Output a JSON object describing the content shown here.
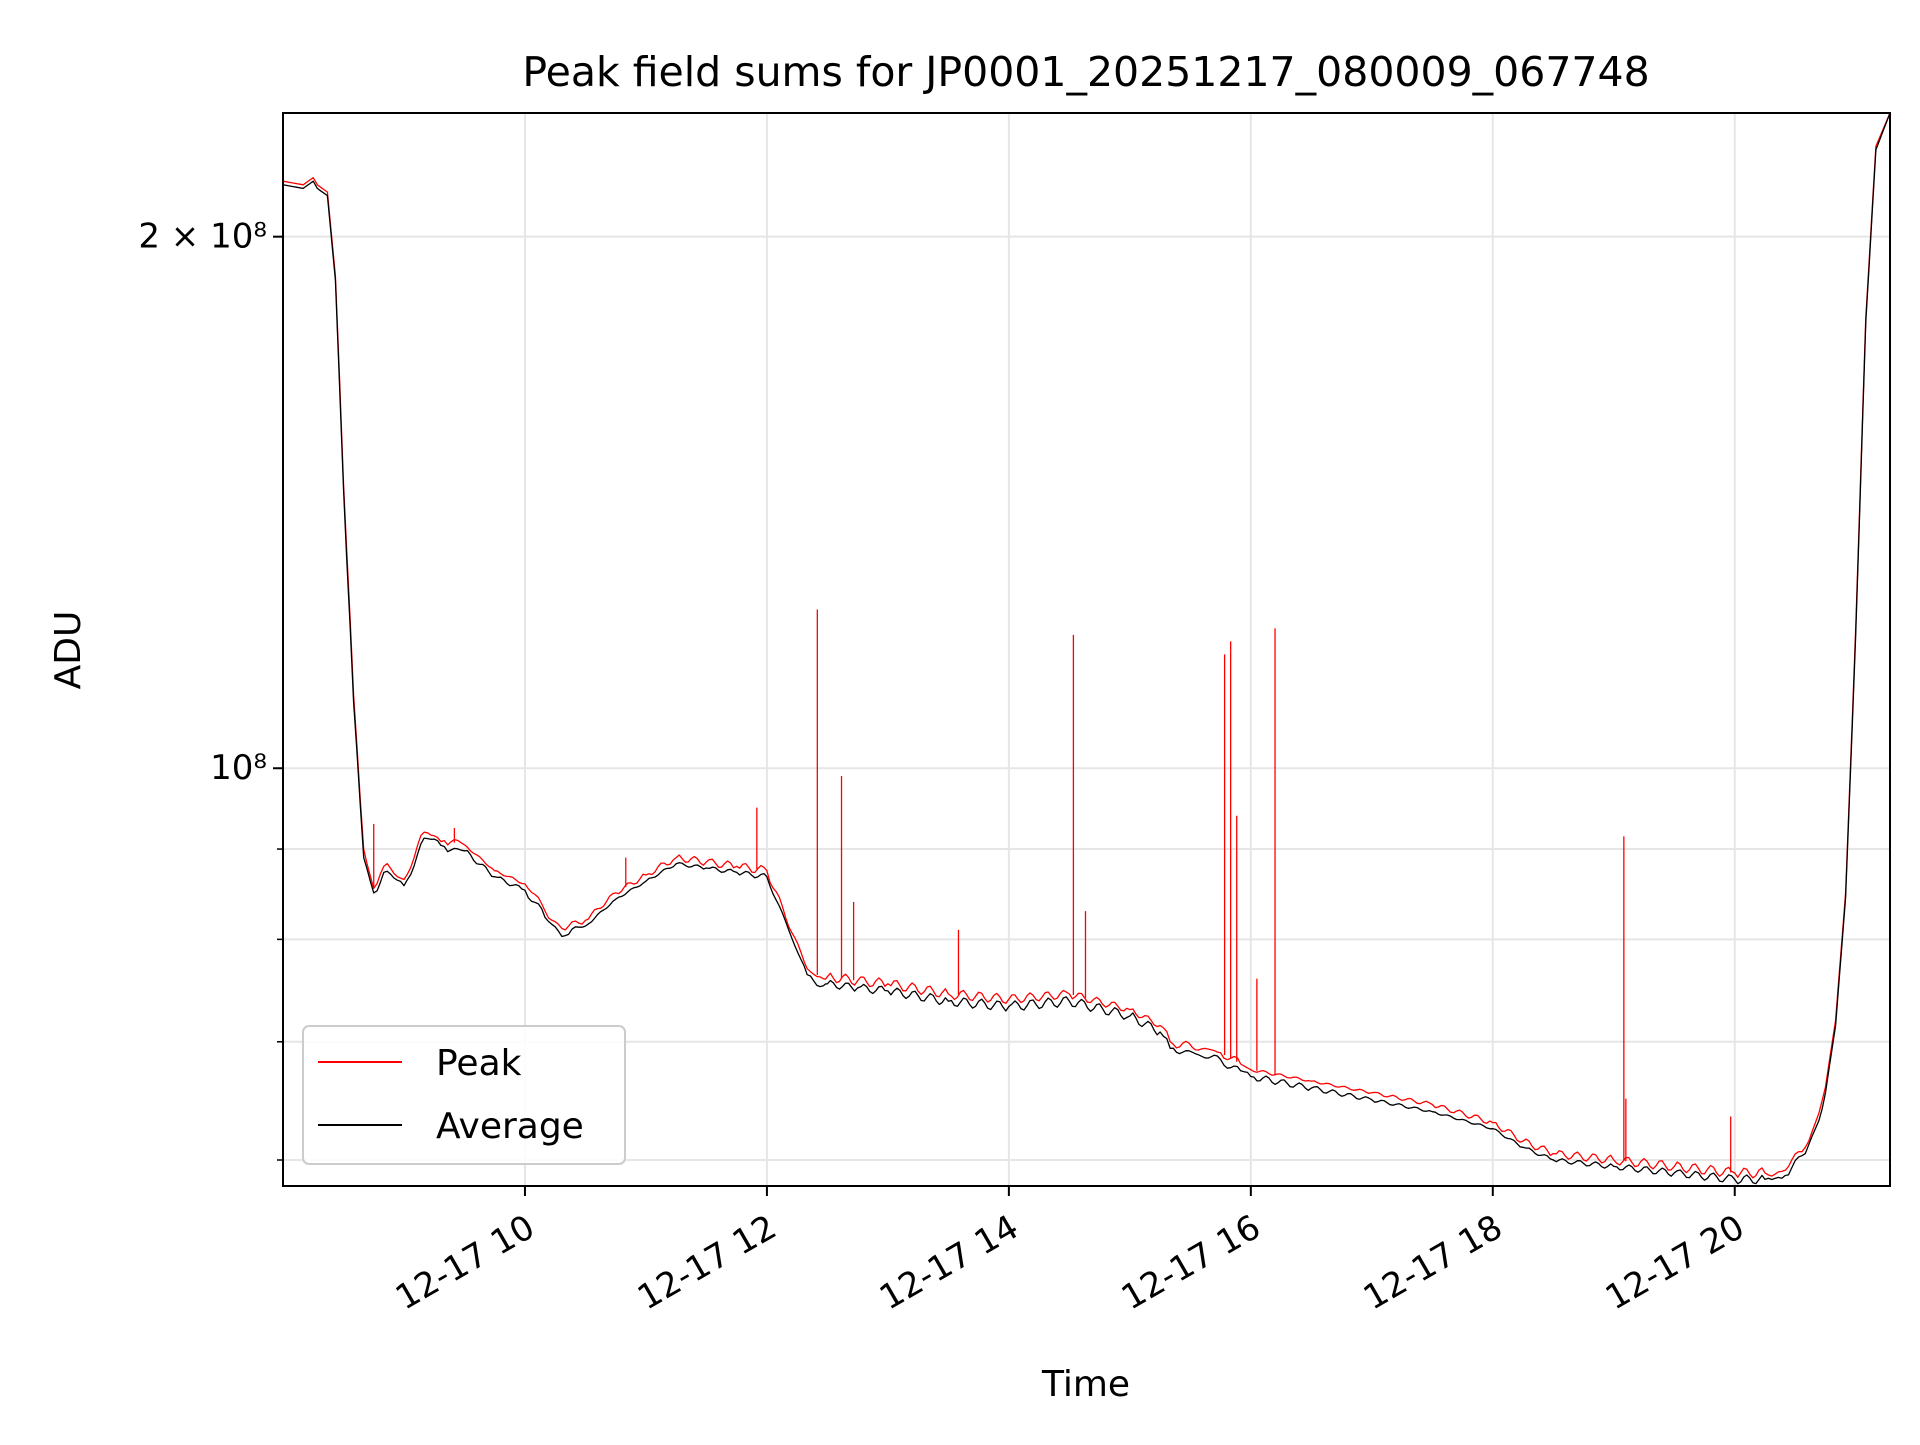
{
  "chart_data": {
    "type": "line",
    "title": "Peak field sums for JP0001_20251217_080009_067748",
    "xlabel": "Time",
    "ylabel": "ADU",
    "y_scale": "log",
    "grid": true,
    "legend": "lower-left",
    "x_range": [
      "2025-12-17 08:00",
      "2025-12-17 21:17"
    ],
    "ylim": [
      58000000,
      235000000
    ],
    "x_ticks": [
      {
        "x": "2025-12-17 10:00",
        "label": "12-17 10"
      },
      {
        "x": "2025-12-17 12:00",
        "label": "12-17 12"
      },
      {
        "x": "2025-12-17 14:00",
        "label": "12-17 14"
      },
      {
        "x": "2025-12-17 16:00",
        "label": "12-17 16"
      },
      {
        "x": "2025-12-17 18:00",
        "label": "12-17 18"
      },
      {
        "x": "2025-12-17 20:00",
        "label": "12-17 20"
      }
    ],
    "y_major_ticks": [
      {
        "value": 200000000,
        "label": "2 × 10⁸"
      },
      {
        "value": 100000000,
        "label": "10⁸"
      }
    ],
    "y_minor_ticks": [
      60000000,
      70000000,
      80000000,
      90000000
    ],
    "series": [
      {
        "name": "Peak",
        "color": "#ff0000",
        "x": [
          "2025-12-17 08:00",
          "2025-12-17 08:10",
          "2025-12-17 08:15",
          "2025-12-17 08:17",
          "2025-12-17 08:22",
          "2025-12-17 08:26",
          "2025-12-17 08:30",
          "2025-12-17 08:35",
          "2025-12-17 08:40",
          "2025-12-17 08:45",
          "2025-12-17 08:50",
          "2025-12-17 09:00",
          "2025-12-17 09:10",
          "2025-12-17 09:20",
          "2025-12-17 09:30",
          "2025-12-17 09:45",
          "2025-12-17 10:00",
          "2025-12-17 10:10",
          "2025-12-17 10:20",
          "2025-12-17 10:30",
          "2025-12-17 10:45",
          "2025-12-17 11:00",
          "2025-12-17 11:15",
          "2025-12-17 11:30",
          "2025-12-17 11:45",
          "2025-12-17 12:00",
          "2025-12-17 12:20",
          "2025-12-17 12:28",
          "2025-12-17 12:30",
          "2025-12-17 12:45",
          "2025-12-17 13:00",
          "2025-12-17 13:30",
          "2025-12-17 14:00",
          "2025-12-17 14:30",
          "2025-12-17 15:00",
          "2025-12-17 15:15",
          "2025-12-17 15:20",
          "2025-12-17 15:45",
          "2025-12-17 15:55",
          "2025-12-17 16:00",
          "2025-12-17 16:30",
          "2025-12-17 17:00",
          "2025-12-17 17:30",
          "2025-12-17 18:00",
          "2025-12-17 18:15",
          "2025-12-17 18:30",
          "2025-12-17 19:00",
          "2025-12-17 19:30",
          "2025-12-17 20:00",
          "2025-12-17 20:15",
          "2025-12-17 20:25",
          "2025-12-17 20:35",
          "2025-12-17 20:40",
          "2025-12-17 20:45",
          "2025-12-17 20:50",
          "2025-12-17 20:55",
          "2025-12-17 21:00",
          "2025-12-17 21:05",
          "2025-12-17 21:10",
          "2025-12-17 21:17"
        ],
        "y": [
          215000000,
          214000000,
          216000000,
          214000000,
          212000000,
          190000000,
          145000000,
          110000000,
          90000000,
          85500000,
          88000000,
          86500000,
          92000000,
          91000000,
          90500000,
          87500000,
          86000000,
          83000000,
          81000000,
          82000000,
          85000000,
          87000000,
          89000000,
          88500000,
          88000000,
          87500000,
          77000000,
          76000000,
          76200000,
          75800000,
          75500000,
          74500000,
          74000000,
          74500000,
          73000000,
          71500000,
          70000000,
          69000000,
          68000000,
          67500000,
          66500000,
          65500000,
          64500000,
          63000000,
          61500000,
          60500000,
          60000000,
          59500000,
          59000000,
          59000000,
          59200000,
          61000000,
          63000000,
          66000000,
          72000000,
          85000000,
          120000000,
          180000000,
          225000000,
          235000000
        ]
      },
      {
        "name": "Average",
        "color": "#000000",
        "x": [
          "2025-12-17 08:00",
          "2025-12-17 08:10",
          "2025-12-17 08:15",
          "2025-12-17 08:17",
          "2025-12-17 08:22",
          "2025-12-17 08:26",
          "2025-12-17 08:30",
          "2025-12-17 08:35",
          "2025-12-17 08:40",
          "2025-12-17 08:45",
          "2025-12-17 08:50",
          "2025-12-17 09:00",
          "2025-12-17 09:10",
          "2025-12-17 09:20",
          "2025-12-17 09:30",
          "2025-12-17 09:45",
          "2025-12-17 10:00",
          "2025-12-17 10:10",
          "2025-12-17 10:20",
          "2025-12-17 10:30",
          "2025-12-17 10:45",
          "2025-12-17 11:00",
          "2025-12-17 11:15",
          "2025-12-17 11:30",
          "2025-12-17 11:45",
          "2025-12-17 12:00",
          "2025-12-17 12:20",
          "2025-12-17 12:28",
          "2025-12-17 12:30",
          "2025-12-17 12:45",
          "2025-12-17 13:00",
          "2025-12-17 13:30",
          "2025-12-17 14:00",
          "2025-12-17 14:30",
          "2025-12-17 15:00",
          "2025-12-17 15:15",
          "2025-12-17 15:20",
          "2025-12-17 15:45",
          "2025-12-17 15:55",
          "2025-12-17 16:00",
          "2025-12-17 16:30",
          "2025-12-17 17:00",
          "2025-12-17 17:30",
          "2025-12-17 18:00",
          "2025-12-17 18:15",
          "2025-12-17 18:30",
          "2025-12-17 19:00",
          "2025-12-17 19:30",
          "2025-12-17 20:00",
          "2025-12-17 20:15",
          "2025-12-17 20:25",
          "2025-12-17 20:35",
          "2025-12-17 20:40",
          "2025-12-17 20:45",
          "2025-12-17 20:50",
          "2025-12-17 20:55",
          "2025-12-17 21:00",
          "2025-12-17 21:05",
          "2025-12-17 21:10",
          "2025-12-17 21:17"
        ],
        "y": [
          214000000,
          213000000,
          215000000,
          213000000,
          211000000,
          189000000,
          144000000,
          109000000,
          89000000,
          85000000,
          87300000,
          85800000,
          91300000,
          90300000,
          89800000,
          86800000,
          85300000,
          82300000,
          80400000,
          81400000,
          84300000,
          86300000,
          88300000,
          87800000,
          87300000,
          86800000,
          76400000,
          75300000,
          75500000,
          75100000,
          74800000,
          73800000,
          73300000,
          73800000,
          72400000,
          70900000,
          69400000,
          68400000,
          67400000,
          66900000,
          65900000,
          64900000,
          63900000,
          62500000,
          61000000,
          60000000,
          59500000,
          59000000,
          58500000,
          58500000,
          58800000,
          60500000,
          62500000,
          65500000,
          71500000,
          84500000,
          119000000,
          179000000,
          224000000,
          235000000
        ]
      }
    ],
    "spikes": [
      {
        "x": "2025-12-17 08:45",
        "y": 93000000
      },
      {
        "x": "2025-12-17 09:25",
        "y": 92500000
      },
      {
        "x": "2025-12-17 10:50",
        "y": 89000000
      },
      {
        "x": "2025-12-17 11:55",
        "y": 95000000
      },
      {
        "x": "2025-12-17 12:25",
        "y": 123000000
      },
      {
        "x": "2025-12-17 12:37",
        "y": 99000000
      },
      {
        "x": "2025-12-17 12:43",
        "y": 84000000
      },
      {
        "x": "2025-12-17 13:35",
        "y": 81000000
      },
      {
        "x": "2025-12-17 14:32",
        "y": 119000000
      },
      {
        "x": "2025-12-17 14:38",
        "y": 83000000
      },
      {
        "x": "2025-12-17 15:47",
        "y": 116000000
      },
      {
        "x": "2025-12-17 15:50",
        "y": 118000000
      },
      {
        "x": "2025-12-17 15:53",
        "y": 94000000
      },
      {
        "x": "2025-12-17 16:03",
        "y": 76000000
      },
      {
        "x": "2025-12-17 16:12",
        "y": 120000000
      },
      {
        "x": "2025-12-17 19:05",
        "y": 91500000
      },
      {
        "x": "2025-12-17 19:06",
        "y": 65000000
      },
      {
        "x": "2025-12-17 19:58",
        "y": 63500000
      }
    ]
  }
}
